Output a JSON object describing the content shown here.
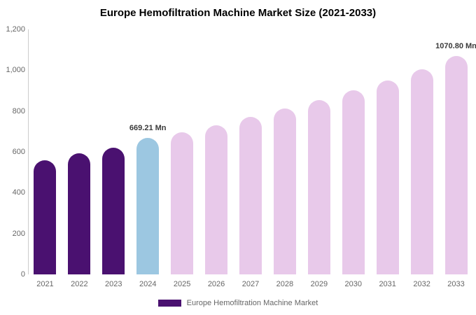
{
  "title": "Europe Hemofiltration Machine Market Size (2021-2033)",
  "legend": {
    "label": "Europe Hemofiltration Machine Market",
    "swatch_color": "#4a1170"
  },
  "colors": {
    "historical_purple": "#4a1170",
    "current_blue": "#9cc7e1",
    "forecast_pink": "#e8c9ea",
    "axis_line": "#cccccc",
    "tick_text": "#666666",
    "annotation_text": "#3a3a3a"
  },
  "chart_data": {
    "type": "bar",
    "title": "Europe Hemofiltration Machine Market Size (2021-2033)",
    "xlabel": "",
    "ylabel": "",
    "unit": "Mn",
    "categories": [
      "2021",
      "2022",
      "2023",
      "2024",
      "2025",
      "2026",
      "2027",
      "2028",
      "2029",
      "2030",
      "2031",
      "2032",
      "2033"
    ],
    "values": [
      560,
      593,
      622,
      669.21,
      695,
      732,
      770,
      812,
      855,
      903,
      950,
      1003,
      1070.8
    ],
    "bar_colors": [
      "#4a1170",
      "#4a1170",
      "#4a1170",
      "#9cc7e1",
      "#e8c9ea",
      "#e8c9ea",
      "#e8c9ea",
      "#e8c9ea",
      "#e8c9ea",
      "#e8c9ea",
      "#e8c9ea",
      "#e8c9ea",
      "#e8c9ea"
    ],
    "ylim": [
      0,
      1200
    ],
    "yticks": [
      0,
      200,
      400,
      600,
      800,
      1000,
      1200
    ],
    "ytick_labels": [
      "0",
      "200",
      "400",
      "600",
      "800",
      "1,000",
      "1,200"
    ],
    "grid": false,
    "legend_position": "bottom",
    "annotations": [
      {
        "category": "2024",
        "text": "669.21 Mn"
      },
      {
        "category": "2033",
        "text": "1070.80 Mn"
      }
    ]
  }
}
